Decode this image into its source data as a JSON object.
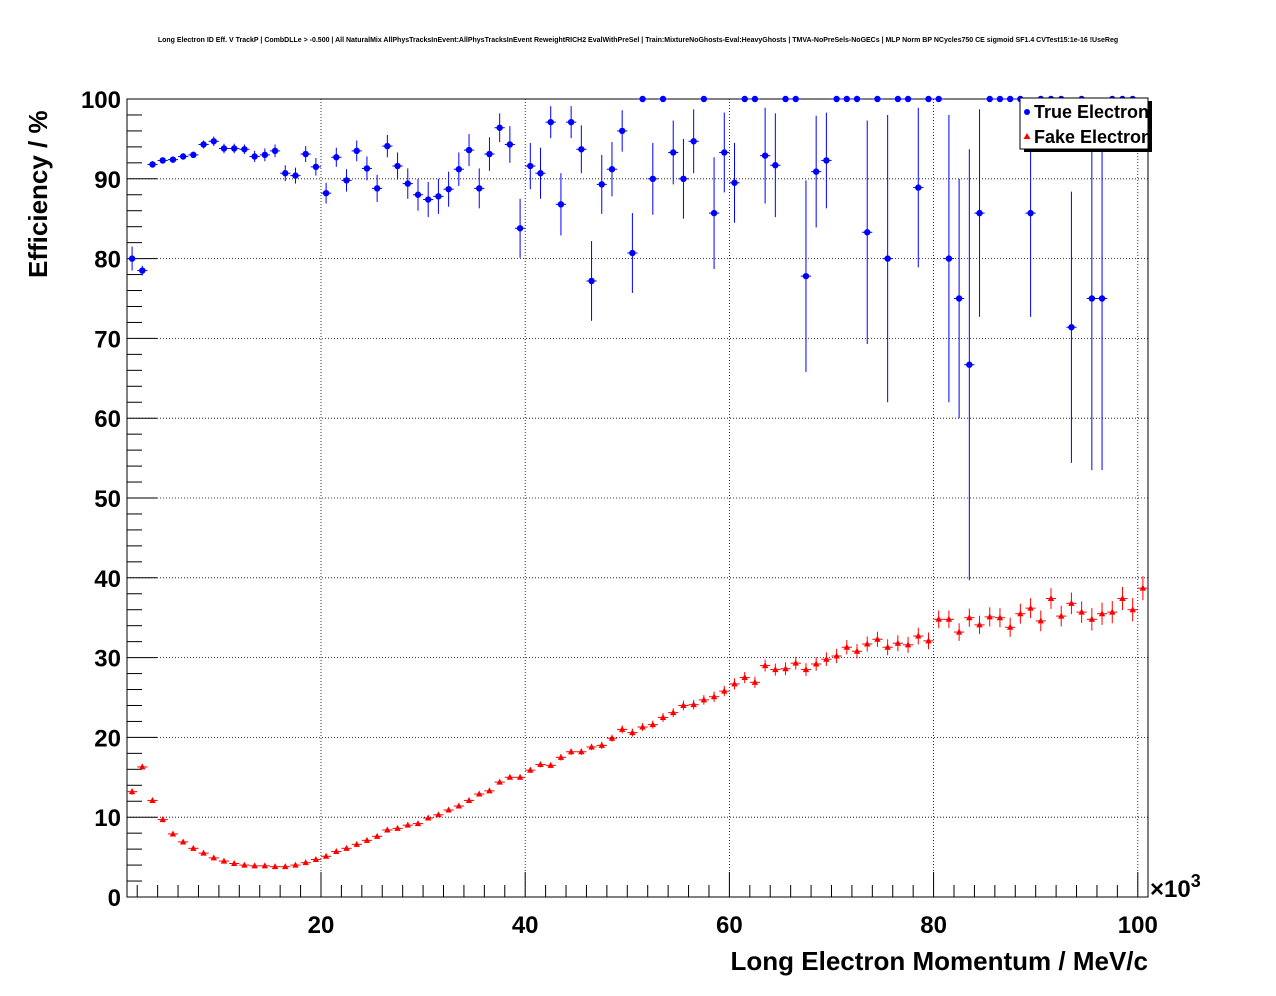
{
  "chart_data": {
    "type": "scatter",
    "title": "Long Electron ID Eff. V TrackP | CombDLLe > -0.500 | All NaturalMix AllPhysTracksInEvent:AllPhysTracksInEvent ReweightRICH2 EvalWithPreSel | Train:MixtureNoGhosts-Eval:HeavyGhosts | TMVA-NoPreSels-NoGECs | MLP Norm BP NCycles750 CE sigmoid SF1.4 CVTest15:1e-16 !UseReg",
    "xlabel": "Long Electron Momentum / MeV/c",
    "ylabel": "Efficiency / %",
    "x_multiplier": "×10",
    "x_multiplier_exp": "3",
    "xlim": [
      1,
      101
    ],
    "ylim": [
      0,
      100
    ],
    "x_ticks": [
      20,
      40,
      60,
      80,
      100
    ],
    "y_ticks": [
      0,
      10,
      20,
      30,
      40,
      50,
      60,
      70,
      80,
      90,
      100
    ],
    "grid": true,
    "legend_position": "top-right",
    "series": [
      {
        "name": "True Electron",
        "color": "#0000ff",
        "marker": "circle",
        "points": [
          {
            "x": 1.5,
            "y": 80.0,
            "err": 1.5
          },
          {
            "x": 2.5,
            "y": 78.5,
            "err": 0.6
          },
          {
            "x": 3.5,
            "y": 91.8,
            "err": 0.4
          },
          {
            "x": 4.5,
            "y": 92.3,
            "err": 0.4
          },
          {
            "x": 5.5,
            "y": 92.4,
            "err": 0.4
          },
          {
            "x": 6.5,
            "y": 92.8,
            "err": 0.4
          },
          {
            "x": 7.5,
            "y": 93.0,
            "err": 0.4
          },
          {
            "x": 8.5,
            "y": 94.3,
            "err": 0.5
          },
          {
            "x": 9.5,
            "y": 94.7,
            "err": 0.6
          },
          {
            "x": 10.5,
            "y": 93.8,
            "err": 0.6
          },
          {
            "x": 11.5,
            "y": 93.8,
            "err": 0.6
          },
          {
            "x": 12.5,
            "y": 93.7,
            "err": 0.6
          },
          {
            "x": 13.5,
            "y": 92.8,
            "err": 0.7
          },
          {
            "x": 14.5,
            "y": 93.0,
            "err": 0.8
          },
          {
            "x": 15.5,
            "y": 93.5,
            "err": 0.8
          },
          {
            "x": 16.5,
            "y": 90.7,
            "err": 1.0
          },
          {
            "x": 17.5,
            "y": 90.4,
            "err": 1.0
          },
          {
            "x": 18.5,
            "y": 93.1,
            "err": 1.0
          },
          {
            "x": 19.5,
            "y": 91.5,
            "err": 1.1
          },
          {
            "x": 20.5,
            "y": 88.2,
            "err": 1.3
          },
          {
            "x": 21.5,
            "y": 92.7,
            "err": 1.2
          },
          {
            "x": 22.5,
            "y": 89.8,
            "err": 1.4
          },
          {
            "x": 23.5,
            "y": 93.5,
            "err": 1.3
          },
          {
            "x": 24.5,
            "y": 91.3,
            "err": 1.5
          },
          {
            "x": 25.5,
            "y": 88.8,
            "err": 1.7
          },
          {
            "x": 26.5,
            "y": 94.1,
            "err": 1.4
          },
          {
            "x": 27.5,
            "y": 91.6,
            "err": 1.7
          },
          {
            "x": 28.5,
            "y": 89.4,
            "err": 1.9
          },
          {
            "x": 29.5,
            "y": 88.0,
            "err": 2.0
          },
          {
            "x": 30.5,
            "y": 87.4,
            "err": 2.2
          },
          {
            "x": 31.5,
            "y": 87.8,
            "err": 2.2
          },
          {
            "x": 32.5,
            "y": 88.7,
            "err": 2.2
          },
          {
            "x": 33.5,
            "y": 91.2,
            "err": 2.1
          },
          {
            "x": 34.5,
            "y": 93.6,
            "err": 2.0
          },
          {
            "x": 35.5,
            "y": 88.8,
            "err": 2.5
          },
          {
            "x": 36.5,
            "y": 93.1,
            "err": 2.1
          },
          {
            "x": 37.5,
            "y": 96.4,
            "err": 1.8
          },
          {
            "x": 38.5,
            "y": 94.3,
            "err": 2.3
          },
          {
            "x": 39.5,
            "y": 83.8,
            "err": 3.7
          },
          {
            "x": 40.5,
            "y": 91.6,
            "err": 2.9
          },
          {
            "x": 41.5,
            "y": 90.7,
            "err": 3.2
          },
          {
            "x": 42.5,
            "y": 97.1,
            "err": 2.0
          },
          {
            "x": 43.5,
            "y": 86.8,
            "err": 3.9
          },
          {
            "x": 44.5,
            "y": 97.1,
            "err": 2.0
          },
          {
            "x": 45.5,
            "y": 93.7,
            "err": 3.0
          },
          {
            "x": 46.5,
            "y": 77.2,
            "err": 5.0
          },
          {
            "x": 47.5,
            "y": 89.3,
            "err": 3.7
          },
          {
            "x": 48.5,
            "y": 91.2,
            "err": 3.4
          },
          {
            "x": 49.5,
            "y": 96.0,
            "err": 2.6
          },
          {
            "x": 50.5,
            "y": 80.7,
            "err": 5.0
          },
          {
            "x": 51.5,
            "y": 100.0,
            "err": 0
          },
          {
            "x": 52.5,
            "y": 90.0,
            "err": 4.5
          },
          {
            "x": 53.5,
            "y": 100.0,
            "err": 0
          },
          {
            "x": 54.5,
            "y": 93.3,
            "err": 4.0
          },
          {
            "x": 55.5,
            "y": 90.0,
            "err": 5.0
          },
          {
            "x": 56.5,
            "y": 94.7,
            "err": 4.0
          },
          {
            "x": 57.5,
            "y": 100.0,
            "err": 0
          },
          {
            "x": 58.5,
            "y": 85.7,
            "err": 7.0
          },
          {
            "x": 59.5,
            "y": 93.3,
            "err": 5.0
          },
          {
            "x": 60.5,
            "y": 89.5,
            "err": 5.0
          },
          {
            "x": 61.5,
            "y": 100.0,
            "err": 0
          },
          {
            "x": 62.5,
            "y": 100.0,
            "err": 0
          },
          {
            "x": 63.5,
            "y": 92.9,
            "err": 6.0
          },
          {
            "x": 64.5,
            "y": 91.7,
            "err": 6.5
          },
          {
            "x": 65.5,
            "y": 100.0,
            "err": 0
          },
          {
            "x": 66.5,
            "y": 100.0,
            "err": 0
          },
          {
            "x": 67.5,
            "y": 77.8,
            "err": 12.0
          },
          {
            "x": 68.5,
            "y": 90.9,
            "err": 7.0
          },
          {
            "x": 69.5,
            "y": 92.3,
            "err": 6.0
          },
          {
            "x": 70.5,
            "y": 100.0,
            "err": 0
          },
          {
            "x": 71.5,
            "y": 100.0,
            "err": 0
          },
          {
            "x": 72.5,
            "y": 100.0,
            "err": 0
          },
          {
            "x": 73.5,
            "y": 83.3,
            "err": 14.0
          },
          {
            "x": 74.5,
            "y": 100.0,
            "err": 0
          },
          {
            "x": 75.5,
            "y": 80.0,
            "err": 18.0
          },
          {
            "x": 76.5,
            "y": 100.0,
            "err": 0
          },
          {
            "x": 77.5,
            "y": 100.0,
            "err": 0
          },
          {
            "x": 78.5,
            "y": 88.9,
            "err": 10.0
          },
          {
            "x": 79.5,
            "y": 100.0,
            "err": 0
          },
          {
            "x": 80.5,
            "y": 100.0,
            "err": 0
          },
          {
            "x": 81.5,
            "y": 80.0,
            "err": 18.0
          },
          {
            "x": 82.5,
            "y": 75.0,
            "err": 15.0
          },
          {
            "x": 83.5,
            "y": 66.7,
            "err": 27.0
          },
          {
            "x": 84.5,
            "y": 85.7,
            "err": 13.0
          },
          {
            "x": 85.5,
            "y": 100.0,
            "err": 0
          },
          {
            "x": 86.5,
            "y": 100.0,
            "err": 0
          },
          {
            "x": 87.5,
            "y": 100.0,
            "err": 0
          },
          {
            "x": 88.5,
            "y": 100.0,
            "err": 0
          },
          {
            "x": 89.5,
            "y": 85.7,
            "err": 13.0
          },
          {
            "x": 90.5,
            "y": 100.0,
            "err": 0
          },
          {
            "x": 91.5,
            "y": 100.0,
            "err": 0
          },
          {
            "x": 92.5,
            "y": 100.0,
            "err": 0
          },
          {
            "x": 93.5,
            "y": 71.4,
            "err": 17.0
          },
          {
            "x": 94.5,
            "y": 100.0,
            "err": 0
          },
          {
            "x": 95.5,
            "y": 75.0,
            "err": 21.5
          },
          {
            "x": 96.5,
            "y": 75.0,
            "err": 21.5
          },
          {
            "x": 97.5,
            "y": 100.0,
            "err": 0
          },
          {
            "x": 98.5,
            "y": 100.0,
            "err": 0
          },
          {
            "x": 99.5,
            "y": 100.0,
            "err": 0
          }
        ]
      },
      {
        "name": "Fake Electron",
        "color": "#ff0000",
        "marker": "triangle",
        "points": [
          {
            "x": 1.5,
            "y": 13.2,
            "err": 0.4
          },
          {
            "x": 2.5,
            "y": 16.3,
            "err": 0.3
          },
          {
            "x": 3.5,
            "y": 12.1,
            "err": 0.2
          },
          {
            "x": 4.5,
            "y": 9.7,
            "err": 0.2
          },
          {
            "x": 5.5,
            "y": 7.9,
            "err": 0.15
          },
          {
            "x": 6.5,
            "y": 6.9,
            "err": 0.15
          },
          {
            "x": 7.5,
            "y": 6.1,
            "err": 0.1
          },
          {
            "x": 8.5,
            "y": 5.5,
            "err": 0.1
          },
          {
            "x": 9.5,
            "y": 4.9,
            "err": 0.1
          },
          {
            "x": 10.5,
            "y": 4.5,
            "err": 0.1
          },
          {
            "x": 11.5,
            "y": 4.2,
            "err": 0.1
          },
          {
            "x": 12.5,
            "y": 4.0,
            "err": 0.1
          },
          {
            "x": 13.5,
            "y": 3.9,
            "err": 0.1
          },
          {
            "x": 14.5,
            "y": 3.9,
            "err": 0.1
          },
          {
            "x": 15.5,
            "y": 3.8,
            "err": 0.1
          },
          {
            "x": 16.5,
            "y": 3.8,
            "err": 0.1
          },
          {
            "x": 17.5,
            "y": 4.0,
            "err": 0.1
          },
          {
            "x": 18.5,
            "y": 4.3,
            "err": 0.1
          },
          {
            "x": 19.5,
            "y": 4.7,
            "err": 0.1
          },
          {
            "x": 20.5,
            "y": 5.1,
            "err": 0.1
          },
          {
            "x": 21.5,
            "y": 5.7,
            "err": 0.1
          },
          {
            "x": 22.5,
            "y": 6.1,
            "err": 0.1
          },
          {
            "x": 23.5,
            "y": 6.6,
            "err": 0.15
          },
          {
            "x": 24.5,
            "y": 7.1,
            "err": 0.15
          },
          {
            "x": 25.5,
            "y": 7.6,
            "err": 0.15
          },
          {
            "x": 26.5,
            "y": 8.4,
            "err": 0.15
          },
          {
            "x": 27.5,
            "y": 8.6,
            "err": 0.15
          },
          {
            "x": 28.5,
            "y": 9.0,
            "err": 0.2
          },
          {
            "x": 29.5,
            "y": 9.2,
            "err": 0.2
          },
          {
            "x": 30.5,
            "y": 9.9,
            "err": 0.2
          },
          {
            "x": 31.5,
            "y": 10.3,
            "err": 0.2
          },
          {
            "x": 32.5,
            "y": 10.9,
            "err": 0.2
          },
          {
            "x": 33.5,
            "y": 11.4,
            "err": 0.2
          },
          {
            "x": 34.5,
            "y": 12.1,
            "err": 0.25
          },
          {
            "x": 35.5,
            "y": 12.9,
            "err": 0.25
          },
          {
            "x": 36.5,
            "y": 13.3,
            "err": 0.3
          },
          {
            "x": 37.5,
            "y": 14.4,
            "err": 0.3
          },
          {
            "x": 38.5,
            "y": 15.0,
            "err": 0.3
          },
          {
            "x": 39.5,
            "y": 15.0,
            "err": 0.3
          },
          {
            "x": 40.5,
            "y": 15.9,
            "err": 0.35
          },
          {
            "x": 41.5,
            "y": 16.6,
            "err": 0.35
          },
          {
            "x": 42.5,
            "y": 16.5,
            "err": 0.35
          },
          {
            "x": 43.5,
            "y": 17.5,
            "err": 0.4
          },
          {
            "x": 44.5,
            "y": 18.2,
            "err": 0.4
          },
          {
            "x": 45.5,
            "y": 18.2,
            "err": 0.4
          },
          {
            "x": 46.5,
            "y": 18.8,
            "err": 0.4
          },
          {
            "x": 47.5,
            "y": 19.0,
            "err": 0.45
          },
          {
            "x": 48.5,
            "y": 19.9,
            "err": 0.45
          },
          {
            "x": 49.5,
            "y": 21.0,
            "err": 0.5
          },
          {
            "x": 50.5,
            "y": 20.6,
            "err": 0.5
          },
          {
            "x": 51.5,
            "y": 21.3,
            "err": 0.5
          },
          {
            "x": 52.5,
            "y": 21.6,
            "err": 0.5
          },
          {
            "x": 53.5,
            "y": 22.5,
            "err": 0.55
          },
          {
            "x": 54.5,
            "y": 23.1,
            "err": 0.55
          },
          {
            "x": 55.5,
            "y": 24.0,
            "err": 0.6
          },
          {
            "x": 56.5,
            "y": 24.1,
            "err": 0.6
          },
          {
            "x": 57.5,
            "y": 24.7,
            "err": 0.6
          },
          {
            "x": 58.5,
            "y": 25.1,
            "err": 0.65
          },
          {
            "x": 59.5,
            "y": 25.8,
            "err": 0.65
          },
          {
            "x": 60.5,
            "y": 26.7,
            "err": 0.7
          },
          {
            "x": 61.5,
            "y": 27.5,
            "err": 0.7
          },
          {
            "x": 62.5,
            "y": 26.9,
            "err": 0.7
          },
          {
            "x": 63.5,
            "y": 29.0,
            "err": 0.75
          },
          {
            "x": 64.5,
            "y": 28.5,
            "err": 0.75
          },
          {
            "x": 65.5,
            "y": 28.6,
            "err": 0.8
          },
          {
            "x": 66.5,
            "y": 29.3,
            "err": 0.8
          },
          {
            "x": 67.5,
            "y": 28.5,
            "err": 0.8
          },
          {
            "x": 68.5,
            "y": 29.2,
            "err": 0.85
          },
          {
            "x": 69.5,
            "y": 29.8,
            "err": 0.85
          },
          {
            "x": 70.5,
            "y": 30.2,
            "err": 0.9
          },
          {
            "x": 71.5,
            "y": 31.3,
            "err": 0.9
          },
          {
            "x": 72.5,
            "y": 30.8,
            "err": 0.9
          },
          {
            "x": 73.5,
            "y": 31.7,
            "err": 0.95
          },
          {
            "x": 74.5,
            "y": 32.3,
            "err": 0.95
          },
          {
            "x": 75.5,
            "y": 31.3,
            "err": 1.0
          },
          {
            "x": 76.5,
            "y": 31.8,
            "err": 1.0
          },
          {
            "x": 77.5,
            "y": 31.6,
            "err": 1.0
          },
          {
            "x": 78.5,
            "y": 32.7,
            "err": 1.05
          },
          {
            "x": 79.5,
            "y": 32.1,
            "err": 1.05
          },
          {
            "x": 80.5,
            "y": 34.8,
            "err": 1.1
          },
          {
            "x": 81.5,
            "y": 34.8,
            "err": 1.1
          },
          {
            "x": 82.5,
            "y": 33.2,
            "err": 1.1
          },
          {
            "x": 83.5,
            "y": 35.0,
            "err": 1.15
          },
          {
            "x": 84.5,
            "y": 34.1,
            "err": 1.15
          },
          {
            "x": 85.5,
            "y": 35.1,
            "err": 1.2
          },
          {
            "x": 86.5,
            "y": 35.0,
            "err": 1.2
          },
          {
            "x": 87.5,
            "y": 33.8,
            "err": 1.2
          },
          {
            "x": 88.5,
            "y": 35.5,
            "err": 1.25
          },
          {
            "x": 89.5,
            "y": 36.2,
            "err": 1.25
          },
          {
            "x": 90.5,
            "y": 34.6,
            "err": 1.3
          },
          {
            "x": 91.5,
            "y": 37.4,
            "err": 1.3
          },
          {
            "x": 92.5,
            "y": 35.2,
            "err": 1.3
          },
          {
            "x": 93.5,
            "y": 36.8,
            "err": 1.35
          },
          {
            "x": 94.5,
            "y": 35.7,
            "err": 1.35
          },
          {
            "x": 95.5,
            "y": 34.8,
            "err": 1.4
          },
          {
            "x": 96.5,
            "y": 35.5,
            "err": 1.4
          },
          {
            "x": 97.5,
            "y": 35.7,
            "err": 1.4
          },
          {
            "x": 98.5,
            "y": 37.4,
            "err": 1.45
          },
          {
            "x": 99.5,
            "y": 36.0,
            "err": 1.45
          },
          {
            "x": 100.5,
            "y": 38.7,
            "err": 1.5
          }
        ]
      }
    ]
  }
}
